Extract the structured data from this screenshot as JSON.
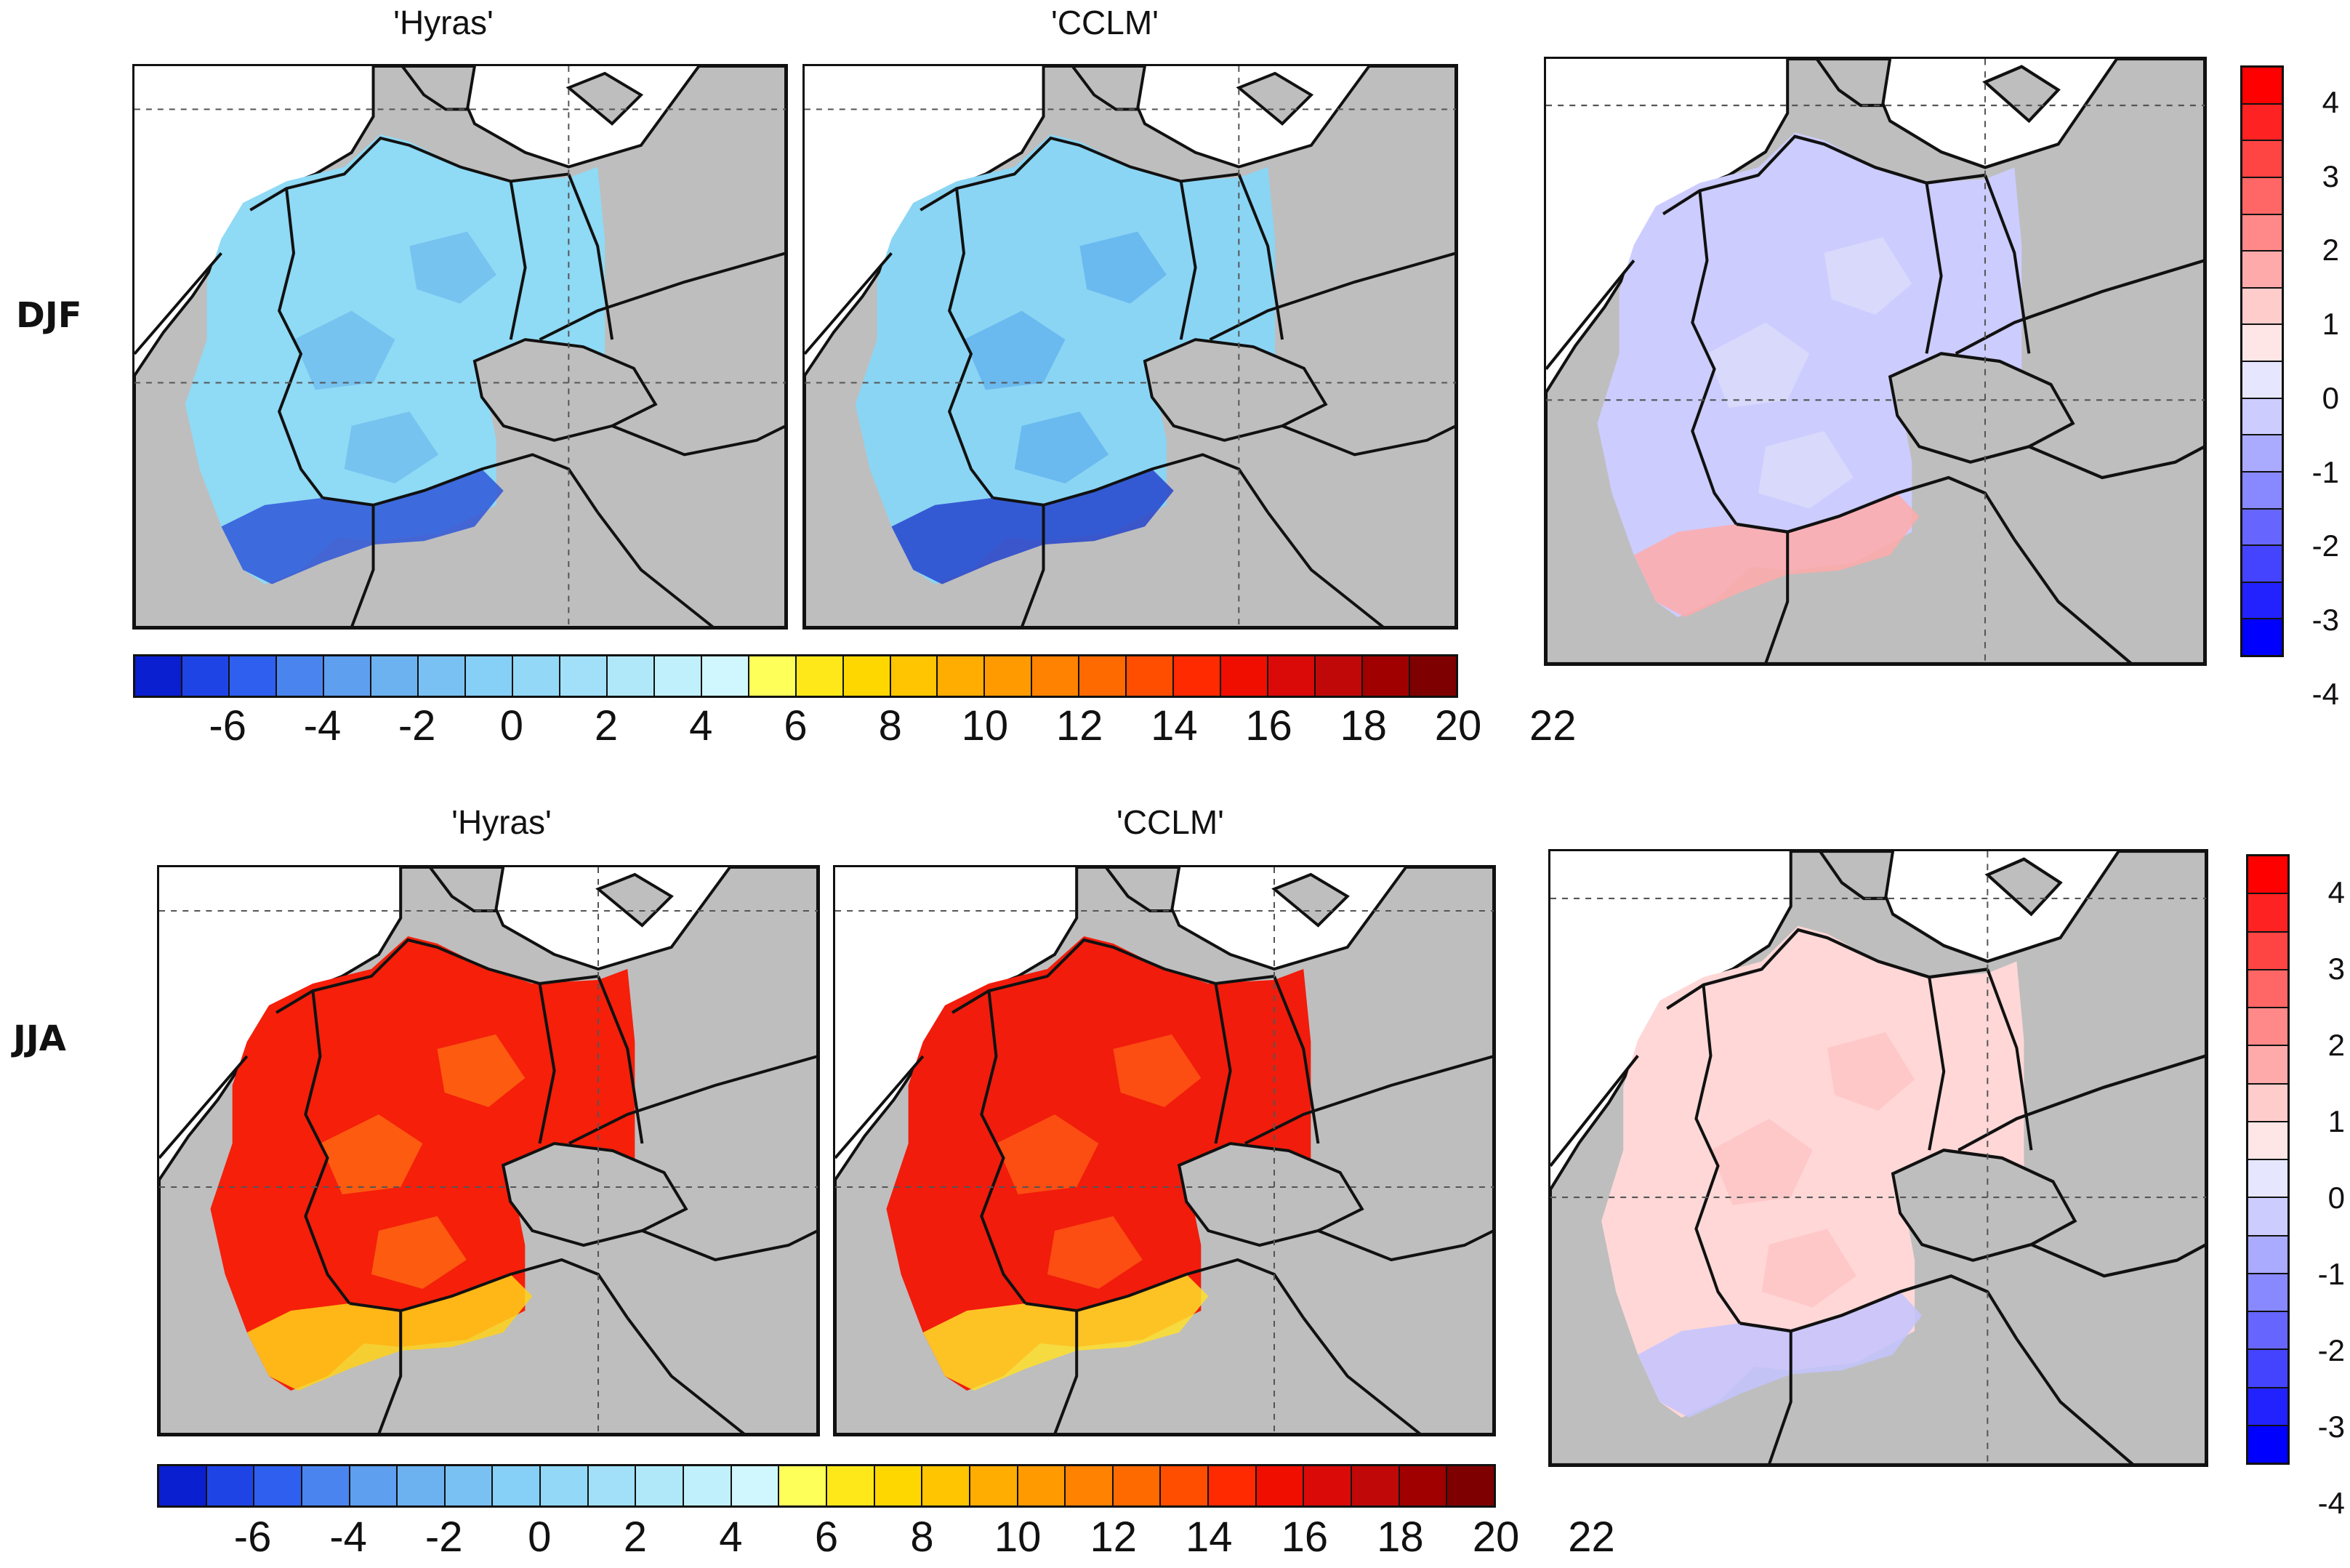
{
  "rows": [
    {
      "season": "DJF",
      "panels": [
        {
          "title": "'Hyras'",
          "field": "winter",
          "shade": "#8fdaf5",
          "detail": "#6fbdef",
          "alps": "#2f57d8"
        },
        {
          "title": "'CCLM'",
          "field": "winter",
          "shade": "#8ad5f4",
          "detail": "#62b2ee",
          "alps": "#2444cc"
        },
        {
          "title": "",
          "field": "difference",
          "shade": "#ccccff",
          "detail": "#dcdcfa",
          "alps": "#ffaaaa"
        }
      ]
    },
    {
      "season": "JJA",
      "panels": [
        {
          "title": "'Hyras'",
          "field": "summer",
          "shade": "#f51f0a",
          "detail": "#ff6a12",
          "alps": "#ffd21a"
        },
        {
          "title": "'CCLM'",
          "field": "summer",
          "shade": "#f11c0c",
          "detail": "#ff5a14",
          "alps": "#ffe02a"
        },
        {
          "title": "",
          "field": "difference",
          "shade": "#ffd7d7",
          "detail": "#ffc4c4",
          "alps": "#c4c4ff"
        }
      ]
    }
  ],
  "temperature_colorbar": {
    "colors": [
      "#0a1fd0",
      "#1f44e6",
      "#2e5fef",
      "#4a85ef",
      "#5e9ff0",
      "#6cb1f0",
      "#79c1f2",
      "#86cff6",
      "#93d8f7",
      "#a1e0f8",
      "#b0e8fa",
      "#c0f0fb",
      "#d0f7fd",
      "#ffff5a",
      "#ffe81a",
      "#ffd700",
      "#ffc500",
      "#ffad00",
      "#ff9a00",
      "#ff8200",
      "#ff6a00",
      "#ff4e00",
      "#ff2a00",
      "#f00e00",
      "#d90a08",
      "#c00808",
      "#a00000",
      "#7f0000"
    ],
    "ticks": [
      "-6",
      "-4",
      "-2",
      "0",
      "2",
      "4",
      "6",
      "8",
      "10",
      "12",
      "14",
      "16",
      "18",
      "20",
      "22"
    ]
  },
  "difference_colorbar": {
    "colors": [
      "#ff0000",
      "#ff2222",
      "#ff4444",
      "#ff6666",
      "#ff8888",
      "#ffaaaa",
      "#ffcccc",
      "#ffe6e6",
      "#e6e6ff",
      "#ccccff",
      "#aaaaff",
      "#8888ff",
      "#6666ff",
      "#4444ff",
      "#2222ff",
      "#0000ff"
    ],
    "ticks": [
      "4",
      "3",
      "2",
      "1",
      "0",
      "-1",
      "-2",
      "-3",
      "-4"
    ]
  },
  "land_color": "#bebebe",
  "ocean_color": "#ffffff"
}
